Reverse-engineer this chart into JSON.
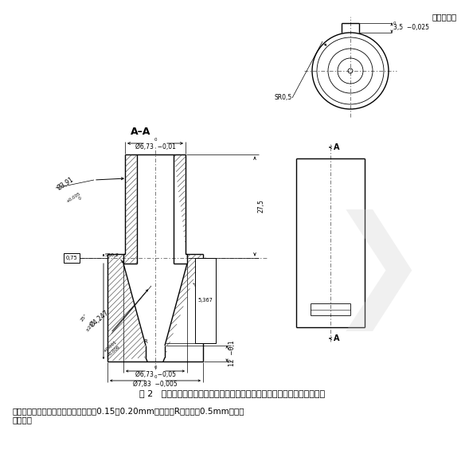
{
  "title_unit": "单位：毫米",
  "section_label": "A–A",
  "caption_fig": "图 2   锁定鲁尔圆锥接头泄漏、旋开扭矩分离和应力开裂试验用标准测试接头",
  "caption_note": "注：所有凸耳或螺纹型式的外边缘应有0.15～0.20mm的半径。R是不超过0.5mm的半径\n或倒角。",
  "bg_color": "#ffffff",
  "line_color": "#000000"
}
